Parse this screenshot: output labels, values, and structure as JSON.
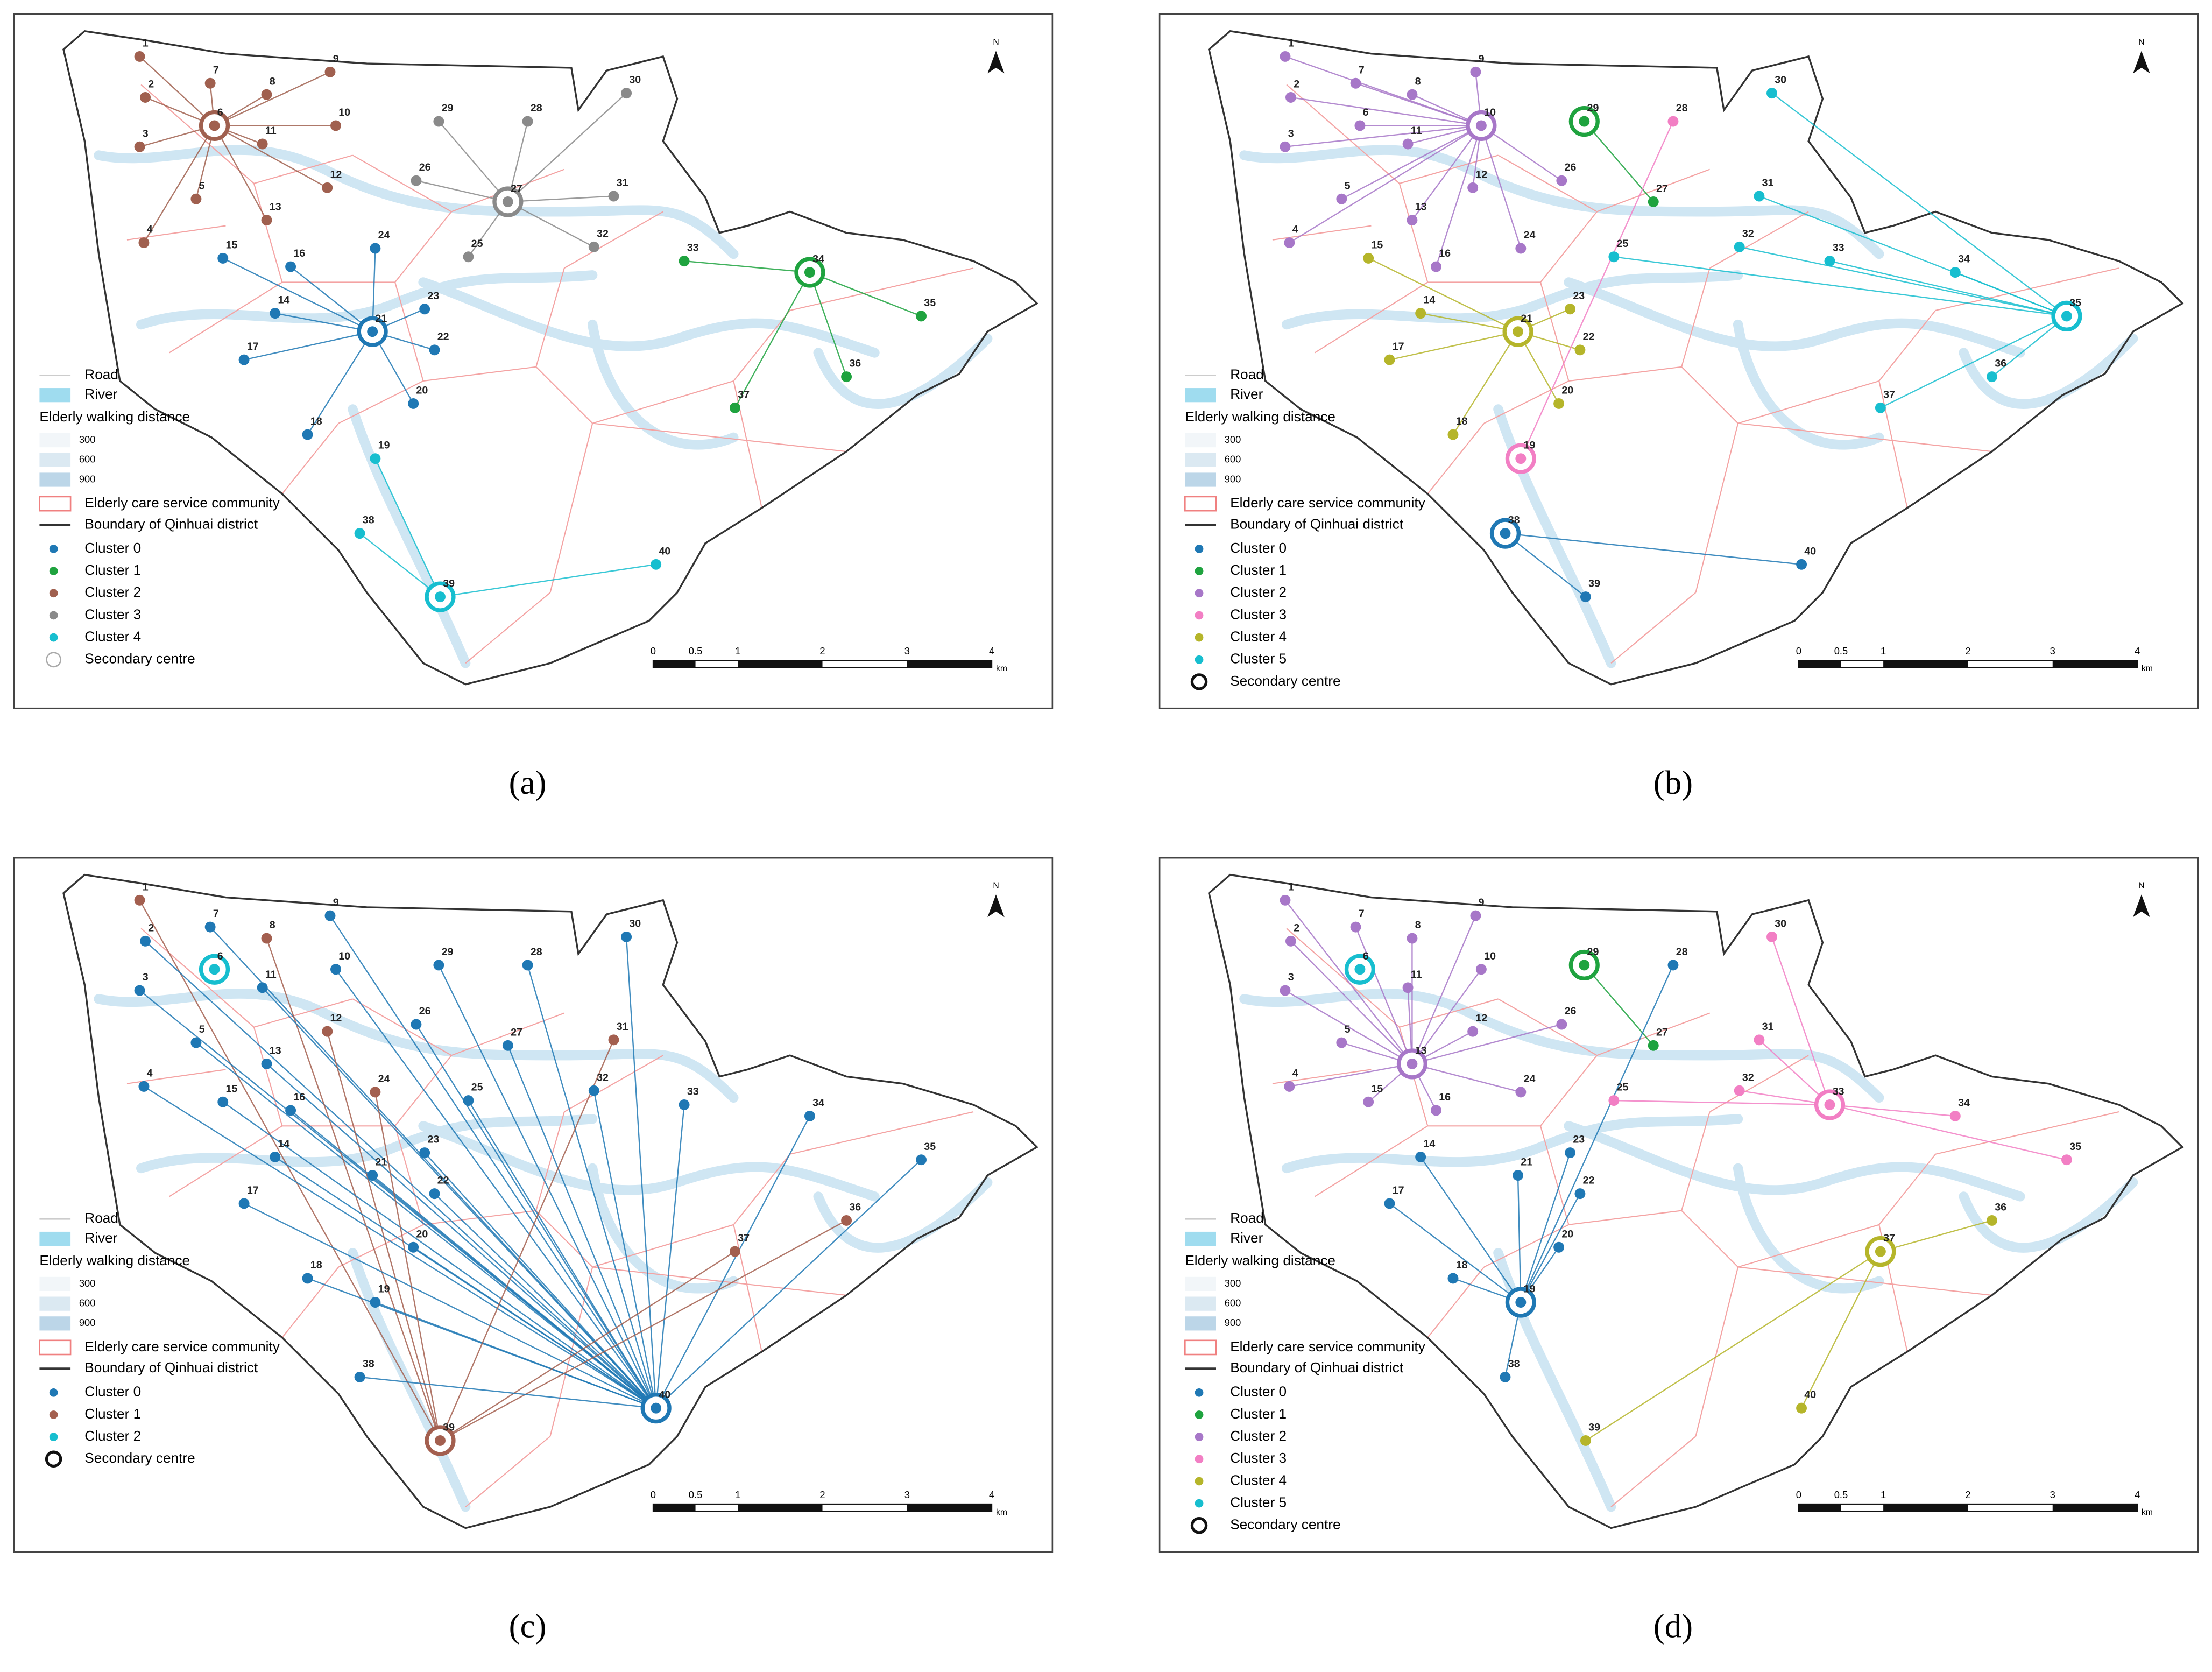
{
  "nodes": [
    "1",
    "2",
    "3",
    "4",
    "5",
    "6",
    "7",
    "8",
    "9",
    "10",
    "11",
    "12",
    "13",
    "14",
    "15",
    "16",
    "17",
    "18",
    "19",
    "20",
    "21",
    "22",
    "23",
    "24",
    "25",
    "26",
    "27",
    "28",
    "29",
    "30",
    "31",
    "32",
    "33",
    "34",
    "35",
    "36",
    "37",
    "38",
    "39",
    "40"
  ],
  "legend": {
    "road": "Road",
    "river": "River",
    "walking_title": "Elderly walking distance",
    "walking_levels": [
      "300",
      "600",
      "900"
    ],
    "community": "Elderly care service community",
    "boundary": "Boundary of Qinhuai district"
  },
  "scale": {
    "ticks": [
      "0",
      "0.5",
      "1",
      "2",
      "3",
      "4"
    ],
    "unit": "km"
  },
  "north": "N",
  "panels": [
    {
      "label": "(a)",
      "centre_label": "Secondary centre",
      "clusters": [
        {
          "name": "Cluster 0",
          "color": "#1f78b4"
        },
        {
          "name": "Cluster 1",
          "color": "#1fa33f"
        },
        {
          "name": "Cluster 2",
          "color": "#a0604f"
        },
        {
          "name": "Cluster 3",
          "color": "#8a8a8a"
        },
        {
          "name": "Cluster 4",
          "color": "#17becf"
        }
      ],
      "centres": [
        20,
        33,
        5,
        26,
        38
      ],
      "membership": [
        2,
        2,
        2,
        2,
        2,
        2,
        2,
        2,
        2,
        2,
        2,
        2,
        2,
        0,
        0,
        0,
        0,
        0,
        4,
        0,
        0,
        0,
        0,
        0,
        3,
        3,
        3,
        3,
        3,
        3,
        3,
        3,
        1,
        1,
        1,
        1,
        1,
        4,
        4,
        4
      ]
    },
    {
      "label": "(b)",
      "centre_label": "Secondary centre",
      "clusters": [
        {
          "name": "Cluster 0",
          "color": "#1f78b4"
        },
        {
          "name": "Cluster 1",
          "color": "#1fa33f"
        },
        {
          "name": "Cluster 2",
          "color": "#a777c8"
        },
        {
          "name": "Cluster 3",
          "color": "#f27fc4"
        },
        {
          "name": "Cluster 4",
          "color": "#b5b52a"
        },
        {
          "name": "Cluster 5",
          "color": "#17becf"
        }
      ],
      "centres": [
        37,
        28,
        9,
        18,
        20,
        34
      ],
      "membership": [
        2,
        2,
        2,
        2,
        2,
        2,
        2,
        2,
        2,
        2,
        2,
        2,
        2,
        4,
        4,
        2,
        4,
        4,
        3,
        4,
        4,
        4,
        4,
        2,
        5,
        2,
        1,
        3,
        1,
        5,
        5,
        5,
        5,
        5,
        5,
        5,
        5,
        0,
        0,
        0
      ]
    },
    {
      "label": "(c)",
      "centre_label": "Secondary centre",
      "clusters": [
        {
          "name": "Cluster 0",
          "color": "#1f78b4"
        },
        {
          "name": "Cluster 1",
          "color": "#a35f4f"
        },
        {
          "name": "Cluster 2",
          "color": "#17becf"
        }
      ],
      "centres": [
        39,
        38,
        5
      ],
      "membership": [
        1,
        0,
        0,
        0,
        0,
        2,
        0,
        1,
        0,
        0,
        0,
        1,
        0,
        0,
        0,
        0,
        0,
        0,
        0,
        0,
        0,
        0,
        0,
        1,
        0,
        0,
        0,
        0,
        0,
        0,
        1,
        0,
        0,
        0,
        0,
        1,
        1,
        0,
        1,
        0
      ]
    },
    {
      "label": "(d)",
      "centre_label": "Secondary centre",
      "clusters": [
        {
          "name": "Cluster 0",
          "color": "#1f78b4"
        },
        {
          "name": "Cluster 1",
          "color": "#1fa33f"
        },
        {
          "name": "Cluster 2",
          "color": "#a777c8"
        },
        {
          "name": "Cluster 3",
          "color": "#f27fc4"
        },
        {
          "name": "Cluster 4",
          "color": "#b5b52a"
        },
        {
          "name": "Cluster 5",
          "color": "#17becf"
        }
      ],
      "centres": [
        18,
        28,
        12,
        32,
        36,
        5
      ],
      "membership": [
        2,
        2,
        2,
        2,
        2,
        5,
        2,
        2,
        2,
        2,
        2,
        2,
        2,
        0,
        2,
        2,
        0,
        0,
        0,
        0,
        0,
        0,
        0,
        2,
        3,
        2,
        1,
        0,
        1,
        3,
        3,
        3,
        3,
        3,
        3,
        4,
        4,
        0,
        4,
        4
      ]
    }
  ]
}
